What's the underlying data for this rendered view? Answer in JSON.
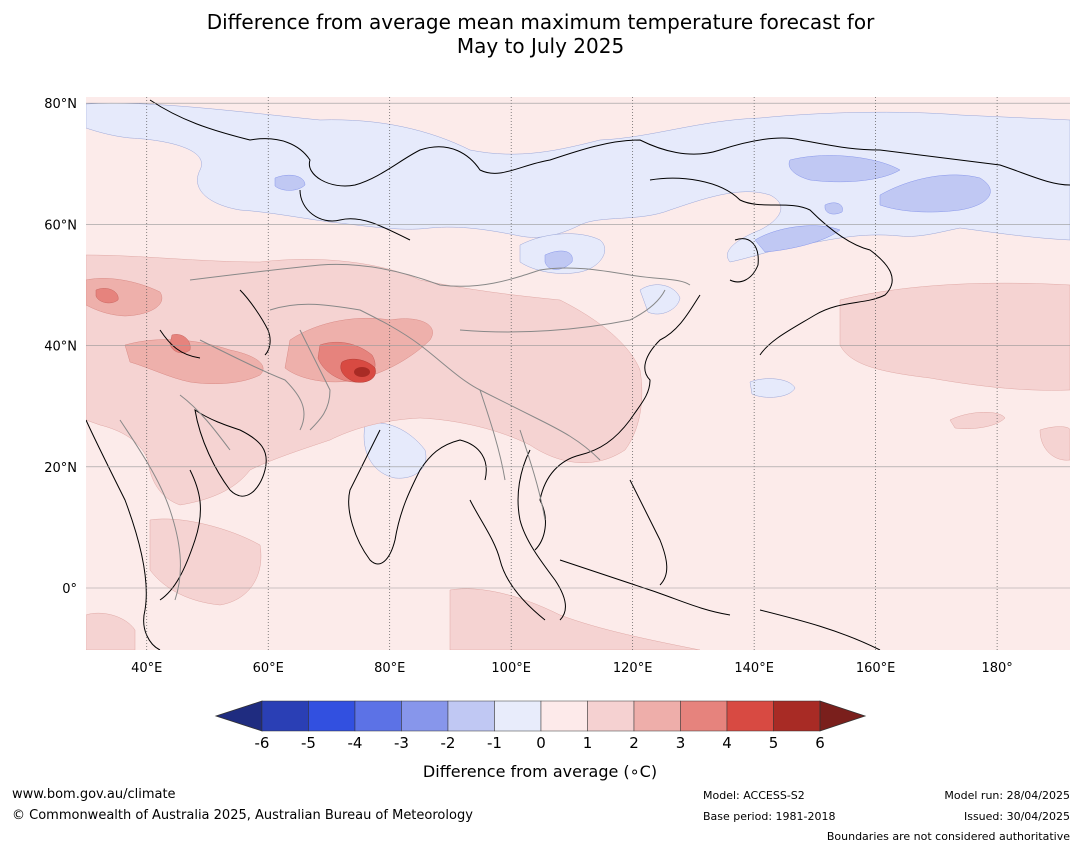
{
  "title": {
    "line1": "Difference from average mean maximum temperature forecast for",
    "line2": "May to July 2025"
  },
  "map": {
    "lat_ticks": [
      {
        "lat": 80,
        "label": "80°N"
      },
      {
        "lat": 60,
        "label": "60°N"
      },
      {
        "lat": 40,
        "label": "40°N"
      },
      {
        "lat": 20,
        "label": "20°N"
      },
      {
        "lat": 0,
        "label": "0°"
      }
    ],
    "lon_ticks": [
      {
        "lon": 40,
        "label": "40°E"
      },
      {
        "lon": 60,
        "label": "60°E"
      },
      {
        "lon": 80,
        "label": "80°E"
      },
      {
        "lon": 100,
        "label": "100°E"
      },
      {
        "lon": 120,
        "label": "120°E"
      },
      {
        "lon": 140,
        "label": "140°E"
      },
      {
        "lon": 160,
        "label": "160°E"
      },
      {
        "lon": 180,
        "label": "180°"
      }
    ],
    "lon_range": [
      30,
      192
    ],
    "lat_range": [
      -10,
      81
    ]
  },
  "colorbar": {
    "title": "Difference from average (∘C)",
    "ticks": [
      "-6",
      "-5",
      "-4",
      "-3",
      "-2",
      "-1",
      "0",
      "1",
      "2",
      "3",
      "4",
      "5",
      "6"
    ],
    "colors": [
      "#1f2c80",
      "#2a3fb5",
      "#3250e0",
      "#5c72e6",
      "#8796eb",
      "#c0c8f3",
      "#e8ecfb",
      "#fdeaea",
      "#f5d1d1",
      "#eeaeaa",
      "#e6837d",
      "#d84a42",
      "#a82b25",
      "#7a1f1c"
    ]
  },
  "colors": {
    "background_warm": "#fcebea",
    "warm_2": "#f5d3d2",
    "warm_3": "#eeb0ab",
    "warm_4": "#e6837d",
    "warm_5": "#d84a42",
    "warm_6": "#a82b25",
    "cool_1": "#e6eafb",
    "cool_2": "#c0c8f3"
  },
  "footer": {
    "url": "www.bom.gov.au/climate",
    "copyright": "© Commonwealth of Australia 2025, Australian Bureau of Meteorology",
    "model": "Model: ACCESS-S2",
    "base_period": "Base period: 1981-2018",
    "model_run": "Model run: 28/04/2025",
    "issued": "Issued: 30/04/2025",
    "disclaimer": "Boundaries are not considered authoritative"
  }
}
